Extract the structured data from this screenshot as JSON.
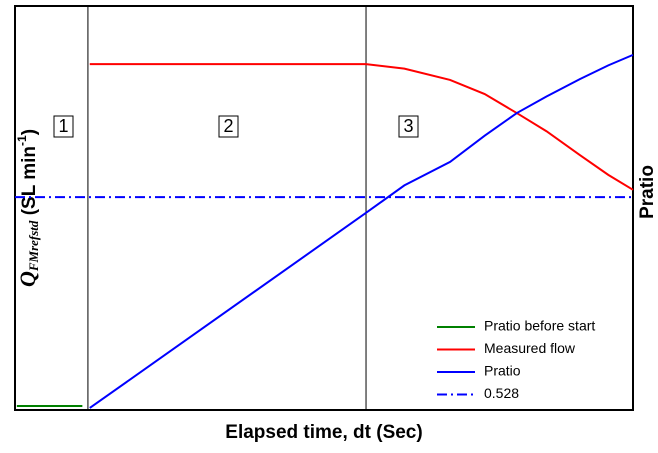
{
  "chart_data": {
    "type": "line",
    "x_label": "Elapsed time, dt (Sec)",
    "y_label": {
      "main": "Q",
      "sub": "FMrefstd",
      "unit": " (SL min",
      "sup": "-1",
      "close": ")"
    },
    "y2_label": "Pratio",
    "regions": [
      "1",
      "2",
      "3"
    ],
    "vlines": [
      11.8,
      56.8
    ],
    "xlim": [
      0,
      100
    ],
    "ylim": [
      0,
      100
    ],
    "legend": "lower right",
    "series": [
      {
        "name": "Pratio before start",
        "color": "#008000",
        "linestyle": "solid",
        "x": [
          0.3,
          10.9
        ],
        "values": [
          1,
          1
        ]
      },
      {
        "name": "Measured flow",
        "color": "#ff0000",
        "linestyle": "solid",
        "x": [
          12.1,
          30,
          56.8,
          63,
          70.4,
          76,
          81.2,
          86,
          91.4,
          96,
          100
        ],
        "values": [
          85.6,
          85.6,
          85.6,
          84.5,
          81.7,
          78.2,
          73.5,
          69,
          63.1,
          58.2,
          54.5
        ]
      },
      {
        "name": "Pratio",
        "color": "#0000ff",
        "linestyle": "solid",
        "x": [
          12.1,
          56.8,
          63,
          70.4,
          76,
          81.2,
          86,
          91.4,
          96,
          100
        ],
        "values": [
          0.5,
          48.8,
          55.6,
          61.4,
          67.9,
          73.5,
          77.6,
          81.9,
          85.3,
          87.9
        ]
      },
      {
        "name": "0.528",
        "color": "#0000ff",
        "linestyle": "dashdot",
        "x": [
          0,
          100
        ],
        "values": [
          52.7,
          52.7
        ]
      }
    ]
  }
}
